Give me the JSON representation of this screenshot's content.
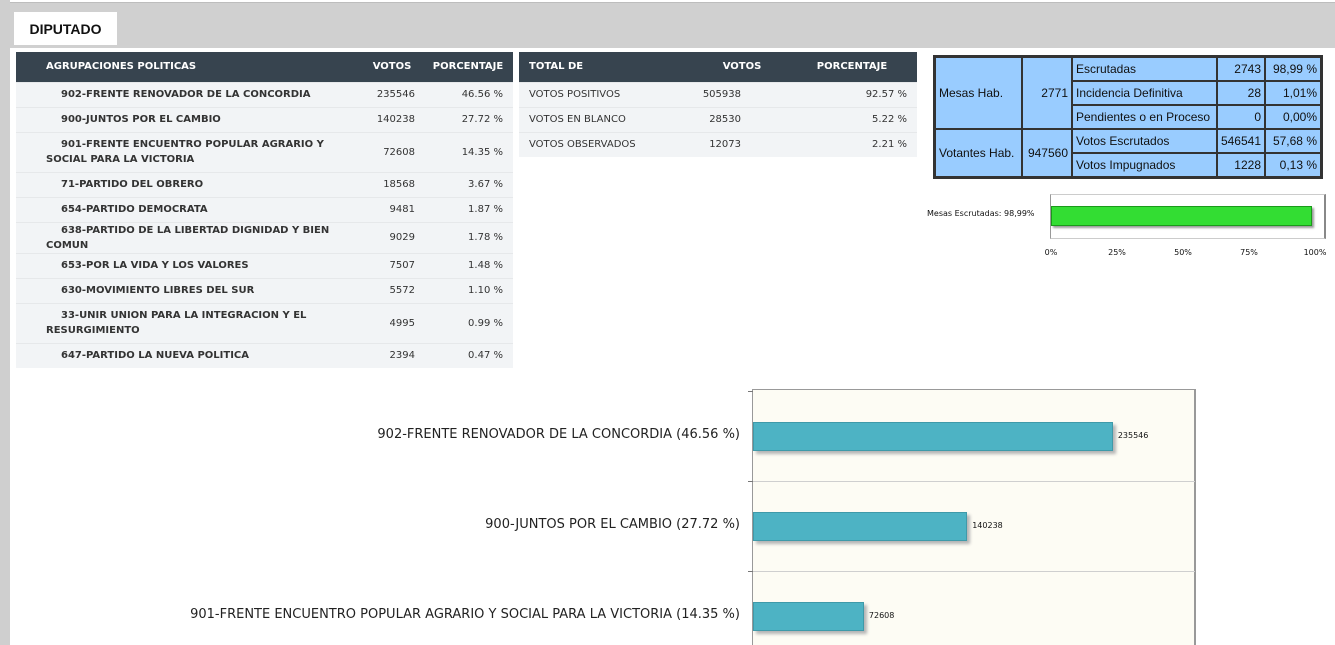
{
  "tab": {
    "label": "DIPUTADO"
  },
  "parties_table": {
    "headers": {
      "name": "AGRUPACIONES POLITICAS",
      "votes": "VOTOS",
      "percent": "PORCENTAJE"
    },
    "rows": [
      {
        "name": "902-FRENTE RENOVADOR DE LA CONCORDIA",
        "votes": "235546",
        "percent": "46.56 %"
      },
      {
        "name": "900-JUNTOS POR EL CAMBIO",
        "votes": "140238",
        "percent": "27.72 %"
      },
      {
        "name": "901-FRENTE ENCUENTRO POPULAR AGRARIO Y SOCIAL PARA LA VICTORIA",
        "votes": "72608",
        "percent": "14.35 %"
      },
      {
        "name": "71-PARTIDO DEL OBRERO",
        "votes": "18568",
        "percent": "3.67 %"
      },
      {
        "name": "654-PARTIDO DEMOCRATA",
        "votes": "9481",
        "percent": "1.87 %"
      },
      {
        "name": "638-PARTIDO DE LA LIBERTAD DIGNIDAD Y BIEN COMUN",
        "votes": "9029",
        "percent": "1.78 %"
      },
      {
        "name": "653-POR LA VIDA Y LOS VALORES",
        "votes": "7507",
        "percent": "1.48 %"
      },
      {
        "name": "630-MOVIMIENTO LIBRES DEL SUR",
        "votes": "5572",
        "percent": "1.10 %"
      },
      {
        "name": "33-UNIR UNION PARA LA INTEGRACION Y EL RESURGIMIENTO",
        "votes": "4995",
        "percent": "0.99 %"
      },
      {
        "name": "647-PARTIDO LA NUEVA POLITICA",
        "votes": "2394",
        "percent": "0.47 %"
      }
    ]
  },
  "totals_table": {
    "headers": {
      "name": "TOTAL DE",
      "votes": "VOTOS",
      "percent": "PORCENTAJE"
    },
    "rows": [
      {
        "name": "VOTOS POSITIVOS",
        "votes": "505938",
        "percent": "92.57 %"
      },
      {
        "name": "VOTOS EN BLANCO",
        "votes": "28530",
        "percent": "5.22 %"
      },
      {
        "name": "VOTOS OBSERVADOS",
        "votes": "12073",
        "percent": "2.21 %"
      }
    ]
  },
  "mesas": {
    "mesas_hab_label": "Mesas Hab.",
    "mesas_hab_value": "2771",
    "votantes_hab_label": "Votantes Hab.",
    "votantes_hab_value": "947560",
    "rows": [
      {
        "label": "Escrutadas",
        "count": "2743",
        "percent": "98,99 %"
      },
      {
        "label": "Incidencia Definitiva",
        "count": "28",
        "percent": "1,01%"
      },
      {
        "label": "Pendientes o en Proceso",
        "count": "0",
        "percent": "0,00%"
      },
      {
        "label": "Votos Escrutados",
        "count": "546541",
        "percent": "57,68 %"
      },
      {
        "label": "Votos Impugnados",
        "count": "1228",
        "percent": "0,13 %"
      }
    ]
  },
  "colors": {
    "header_dark": "#37444f",
    "mesas_blue": "#99ccff",
    "progress_green": "#33dd33",
    "bar_teal": "#4db3c4"
  },
  "chart_data": [
    {
      "type": "bar",
      "orientation": "horizontal",
      "categories": [
        "Mesas Escrutadas: 98,99%"
      ],
      "values": [
        98.99
      ],
      "xlim": [
        0,
        100
      ],
      "xticks": [
        "0%",
        "25%",
        "50%",
        "75%",
        "100%"
      ]
    },
    {
      "type": "bar",
      "orientation": "horizontal",
      "categories": [
        "902-FRENTE RENOVADOR DE LA CONCORDIA  (46.56 %)",
        "900-JUNTOS POR EL CAMBIO  (27.72 %)",
        "901-FRENTE ENCUENTRO POPULAR AGRARIO Y SOCIAL PARA LA VICTORIA  (14.35 %)"
      ],
      "values": [
        235546,
        140238,
        72608
      ],
      "value_labels": [
        "235546",
        "140238",
        "72608"
      ],
      "xlim": [
        0,
        290000
      ]
    }
  ]
}
